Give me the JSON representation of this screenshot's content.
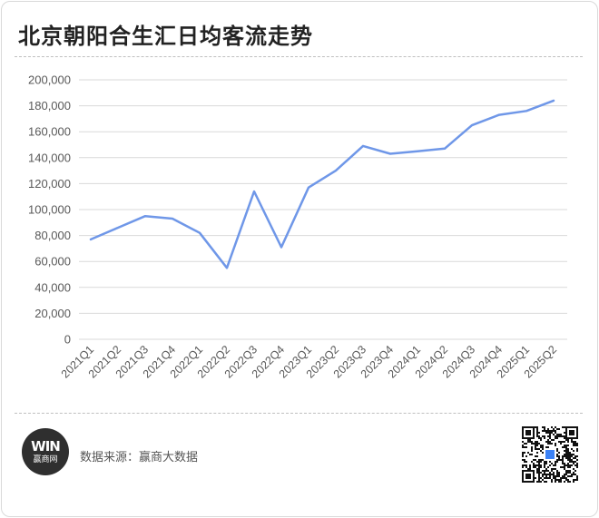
{
  "title": "北京朝阳合生汇日均客流走势",
  "footer": {
    "source_label": "数据来源：赢商大数据",
    "logo_text": "赢商网",
    "logo_mark": "WIN"
  },
  "colors": {
    "line": "#6f97e8",
    "grid": "#d9d9d9",
    "axis_text": "#595959"
  },
  "chart_data": {
    "type": "line",
    "title": "北京朝阳合生汇日均客流走势",
    "xlabel": "",
    "ylabel": "",
    "ylim": [
      0,
      200000
    ],
    "yticks": [
      "0",
      "20,000",
      "40,000",
      "60,000",
      "80,000",
      "100,000",
      "120,000",
      "140,000",
      "160,000",
      "180,000",
      "200,000"
    ],
    "grid": true,
    "legend": "none",
    "categories": [
      "2021Q1",
      "2021Q2",
      "2021Q3",
      "2021Q4",
      "2022Q1",
      "2022Q2",
      "2022Q3",
      "2022Q4",
      "2023Q1",
      "2023Q2",
      "2023Q3",
      "2023Q4",
      "2024Q1",
      "2024Q2",
      "2024Q3",
      "2024Q4",
      "2025Q1",
      "2025Q2"
    ],
    "series": [
      {
        "values": [
          77000,
          86000,
          95000,
          93000,
          82000,
          55000,
          114000,
          71000,
          117000,
          130000,
          149000,
          143000,
          145000,
          147000,
          165000,
          173000,
          176000,
          184000
        ]
      }
    ]
  }
}
